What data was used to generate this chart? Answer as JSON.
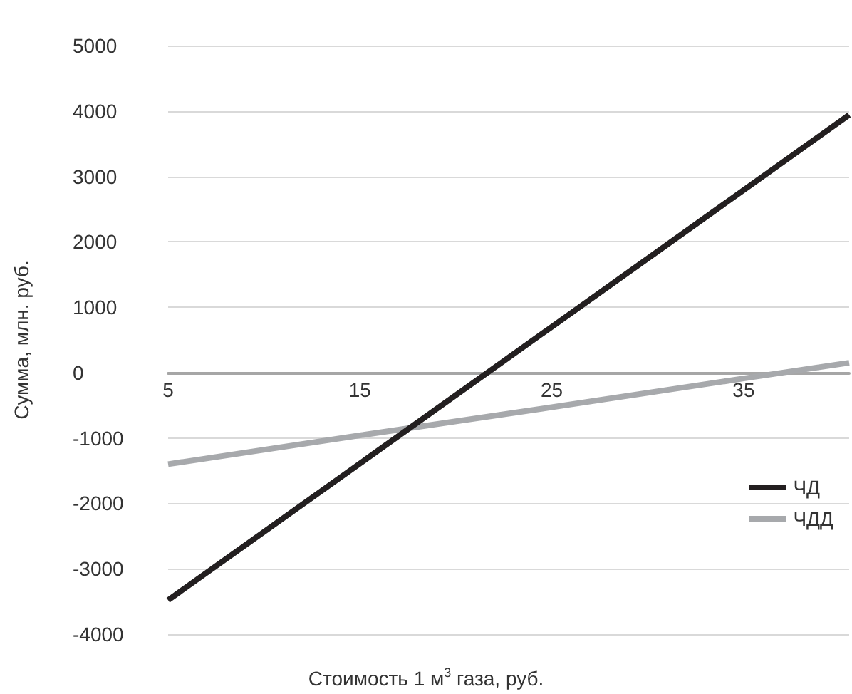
{
  "chart_data": {
    "type": "line",
    "xlabel": "Стоимость 1 м$^{3}$ газа, руб.",
    "ylabel": "Сумма, млн. руб.",
    "x": [
      5,
      15,
      25,
      35,
      40.5
    ],
    "series": [
      {
        "name": "ЧД",
        "color": "#231f20",
        "values": [
          -3480,
          -1390,
          700,
          2790,
          3940
        ]
      },
      {
        "name": "ЧДД",
        "color": "#a7a9ac",
        "values": [
          -1400,
          -960,
          -530,
          -90,
          150
        ]
      }
    ],
    "xlim": [
      5,
      40.5
    ],
    "xticks": [
      5,
      15,
      25,
      35
    ],
    "ylim": [
      -4000,
      5000
    ],
    "yticks": [
      -4000,
      -3000,
      -2000,
      -1000,
      0,
      1000,
      2000,
      3000,
      4000,
      5000
    ],
    "grid": "y",
    "legend": "right",
    "marker": "none",
    "line_style": "solid"
  }
}
